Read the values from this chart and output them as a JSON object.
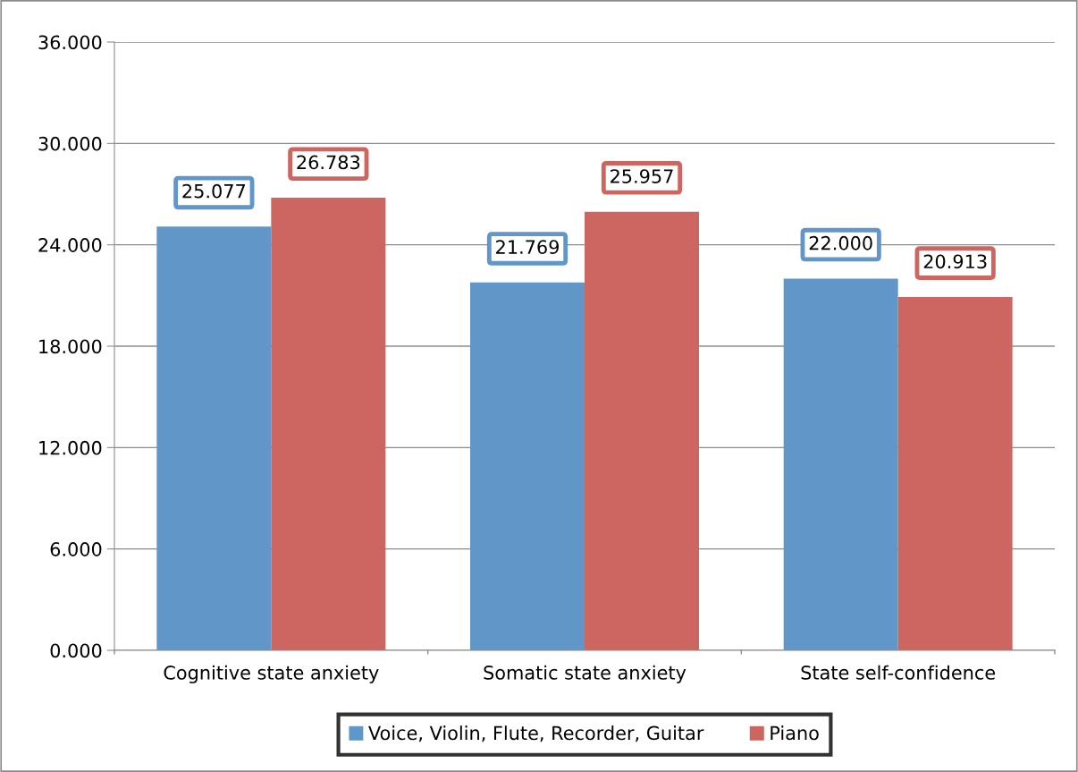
{
  "chart_data": {
    "type": "bar",
    "categories": [
      "Cognitive state anxiety",
      "Somatic state anxiety",
      "State self-confidence"
    ],
    "series": [
      {
        "name": "Voice, Violin, Flute, Recorder, Guitar",
        "color": "#6097c8",
        "values": [
          25.077,
          21.769,
          22.0
        ],
        "value_labels": [
          "25.077",
          "21.769",
          "22.000"
        ]
      },
      {
        "name": "Piano",
        "color": "#cd6660",
        "values": [
          26.783,
          25.957,
          20.913
        ],
        "value_labels": [
          "26.783",
          "25.957",
          "20.913"
        ]
      }
    ],
    "ylim": [
      0,
      36
    ],
    "yticks": [
      {
        "value": 0,
        "label": "0.000"
      },
      {
        "value": 6,
        "label": "6.000"
      },
      {
        "value": 12,
        "label": "12.000"
      },
      {
        "value": 18,
        "label": "18.000"
      },
      {
        "value": 24,
        "label": "24.000"
      },
      {
        "value": 30,
        "label": "30.000"
      },
      {
        "value": 36,
        "label": "36.000"
      }
    ],
    "grid": "y",
    "legend": "bottom"
  }
}
